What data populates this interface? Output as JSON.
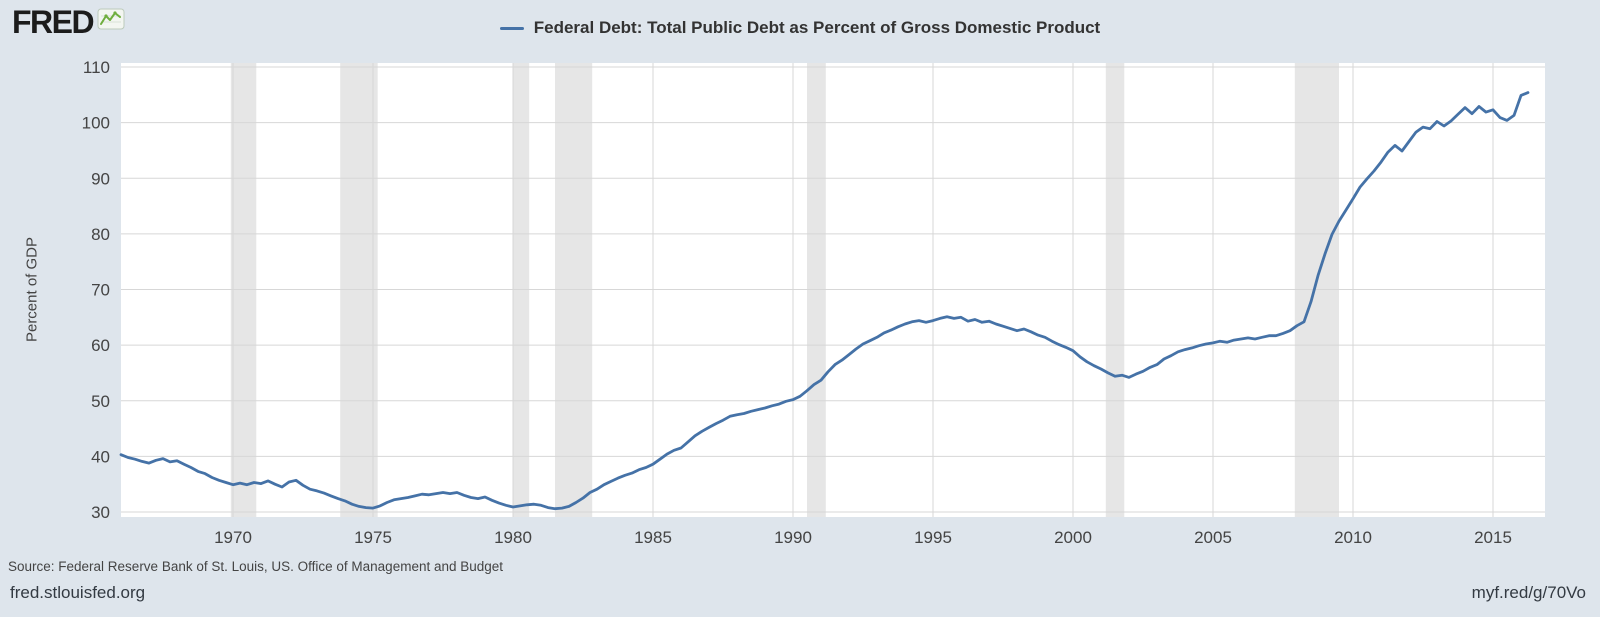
{
  "header": {
    "logo_text": "FRED",
    "legend": {
      "label": "Federal Debt: Total Public Debt as Percent of Gross Domestic Product"
    }
  },
  "icons": {
    "logo_sparkline": "sparkline-icon"
  },
  "footer": {
    "source": "Source: Federal Reserve Bank of St. Louis, US. Office of Management and Budget",
    "site": "fred.stlouisfed.org",
    "short_url": "myf.red/g/70Vo"
  },
  "chart_data": {
    "type": "line",
    "title": "Federal Debt: Total Public Debt as Percent of Gross Domestic Product",
    "xlabel": "",
    "ylabel": "Percent of GDP",
    "ylim": [
      30,
      110
    ],
    "yticks": [
      30,
      40,
      50,
      60,
      70,
      80,
      90,
      100,
      110
    ],
    "xticks": [
      1970,
      1975,
      1980,
      1985,
      1990,
      1995,
      2000,
      2005,
      2010,
      2015
    ],
    "x_start": 1966.0,
    "x_step": 0.25,
    "x_end": 2016.25,
    "grid": true,
    "legend_position": "top-center",
    "colors": {
      "background": "#dee5ec",
      "plot_bg": "#ffffff",
      "grid": "#d7d7d7",
      "recession": "#e6e6e6",
      "line": "#4572a7",
      "tick_text": "#444444"
    },
    "recessions": [
      [
        1969.92,
        1970.83
      ],
      [
        1973.83,
        1975.17
      ],
      [
        1980.0,
        1980.58
      ],
      [
        1981.5,
        1982.83
      ],
      [
        1990.5,
        1991.17
      ],
      [
        2001.17,
        2001.83
      ],
      [
        2007.92,
        2009.5
      ]
    ],
    "series": [
      {
        "name": "Federal Debt: Total Public Debt as Percent of Gross Domestic Product",
        "color": "#4572a7",
        "values": [
          40.3,
          39.8,
          39.5,
          39.1,
          38.8,
          39.3,
          39.6,
          39.0,
          39.2,
          38.6,
          38.0,
          37.3,
          36.9,
          36.2,
          35.7,
          35.3,
          34.9,
          35.2,
          34.9,
          35.3,
          35.1,
          35.6,
          35.0,
          34.5,
          35.4,
          35.7,
          34.8,
          34.1,
          33.8,
          33.4,
          32.9,
          32.4,
          32.0,
          31.4,
          31.0,
          30.8,
          30.7,
          31.1,
          31.7,
          32.2,
          32.4,
          32.6,
          32.9,
          33.2,
          33.1,
          33.3,
          33.5,
          33.3,
          33.5,
          33.0,
          32.6,
          32.4,
          32.7,
          32.1,
          31.6,
          31.2,
          30.9,
          31.1,
          31.3,
          31.4,
          31.2,
          30.8,
          30.6,
          30.7,
          31.0,
          31.7,
          32.5,
          33.5,
          34.1,
          34.9,
          35.5,
          36.1,
          36.6,
          37.0,
          37.6,
          38.0,
          38.6,
          39.5,
          40.4,
          41.1,
          41.5,
          42.6,
          43.7,
          44.5,
          45.2,
          45.9,
          46.5,
          47.2,
          47.5,
          47.7,
          48.1,
          48.4,
          48.7,
          49.1,
          49.4,
          49.9,
          50.2,
          50.8,
          51.8,
          52.9,
          53.7,
          55.2,
          56.5,
          57.3,
          58.3,
          59.3,
          60.2,
          60.8,
          61.4,
          62.2,
          62.7,
          63.3,
          63.8,
          64.2,
          64.4,
          64.1,
          64.4,
          64.8,
          65.1,
          64.8,
          65.0,
          64.3,
          64.6,
          64.1,
          64.3,
          63.8,
          63.4,
          63.0,
          62.6,
          62.9,
          62.4,
          61.8,
          61.4,
          60.7,
          60.1,
          59.6,
          59.0,
          57.9,
          57.0,
          56.3,
          55.7,
          55.0,
          54.4,
          54.6,
          54.2,
          54.8,
          55.3,
          56.0,
          56.5,
          57.5,
          58.1,
          58.8,
          59.2,
          59.5,
          59.9,
          60.2,
          60.4,
          60.7,
          60.5,
          60.9,
          61.1,
          61.3,
          61.1,
          61.4,
          61.7,
          61.7,
          62.1,
          62.6,
          63.5,
          64.2,
          67.8,
          72.5,
          76.4,
          79.9,
          82.3,
          84.3,
          86.3,
          88.4,
          89.9,
          91.3,
          92.9,
          94.7,
          95.9,
          94.9,
          96.6,
          98.3,
          99.2,
          98.9,
          100.2,
          99.4,
          100.3,
          101.5,
          102.7,
          101.6,
          102.9,
          101.9,
          102.3,
          100.9,
          100.4,
          101.3,
          104.9,
          105.4
        ]
      }
    ]
  }
}
